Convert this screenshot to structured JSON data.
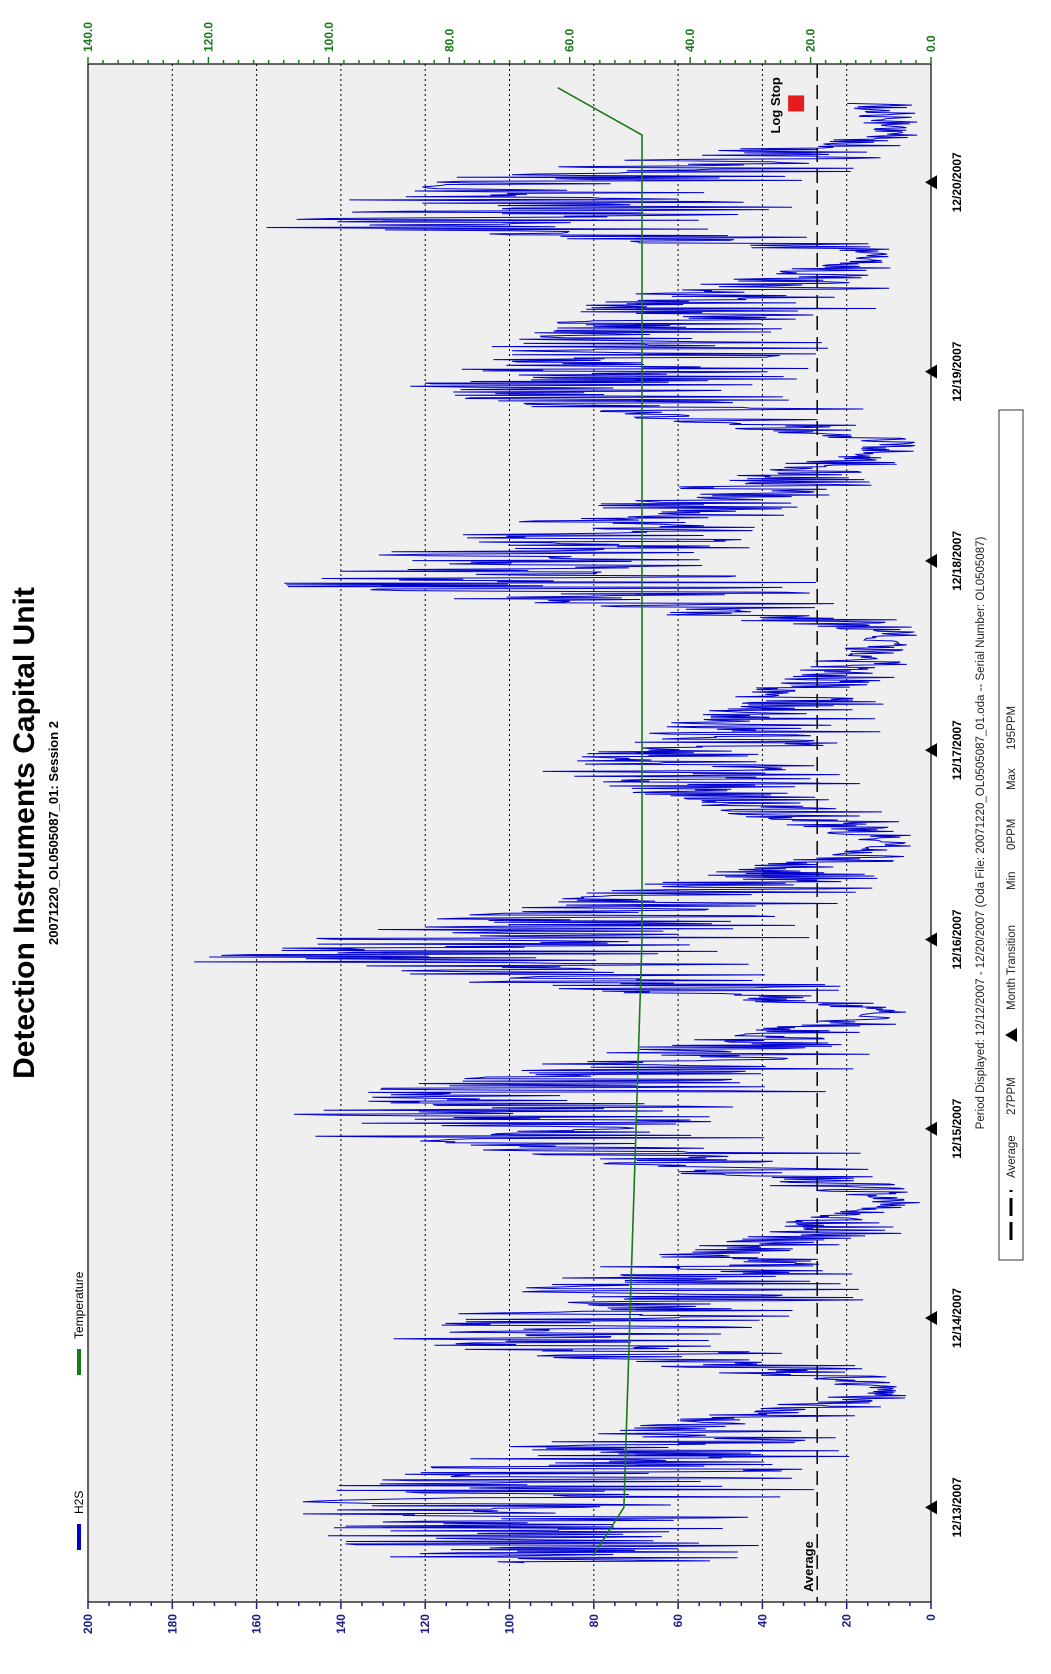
{
  "chart_data": {
    "type": "line",
    "title": "Detection Instruments Capital Unit",
    "subtitle": "20071220_OL0505087_01: Session 2",
    "orientation": "rotated-90-ccw",
    "x_ticks": [
      "12/13/2007",
      "12/14/2007",
      "12/15/2007",
      "12/16/2007",
      "12/17/2007",
      "12/18/2007",
      "12/19/2007",
      "12/20/2007"
    ],
    "y_left": {
      "ticks": [
        "0",
        "20",
        "40",
        "60",
        "80",
        "100",
        "120",
        "140",
        "160",
        "180",
        "200"
      ],
      "range": [
        0,
        200
      ]
    },
    "y_right": {
      "ticks": [
        "0.0",
        "20.0",
        "40.0",
        "60.0",
        "80.0",
        "100.0",
        "120.0",
        "140.0"
      ],
      "range": [
        0,
        140
      ]
    },
    "grid": true,
    "legend_position": "top-left",
    "average": {
      "label": "Average",
      "value": 27
    },
    "log_stop_label": "Log Stop",
    "series": [
      {
        "name": "H2S",
        "axis": "left",
        "color": "#0000cc",
        "approx_envelope_peaks": [
          {
            "date": "12/12/2007 18:00",
            "value": 137
          },
          {
            "date": "12/13/2007 00:00",
            "value": 155
          },
          {
            "date": "12/13/2007 06:00",
            "value": 125
          },
          {
            "date": "12/13/2007 21:00",
            "value": 132
          },
          {
            "date": "12/14/2007 06:00",
            "value": 85
          },
          {
            "date": "12/14/2007 21:00",
            "value": 100
          },
          {
            "date": "12/15/2007 00:00",
            "value": 168
          },
          {
            "date": "12/15/2007 06:00",
            "value": 125
          },
          {
            "date": "12/15/2007 21:00",
            "value": 180
          },
          {
            "date": "12/16/2007 00:00",
            "value": 150
          },
          {
            "date": "12/16/2007 21:00",
            "value": 95
          },
          {
            "date": "12/17/2007 06:00",
            "value": 50
          },
          {
            "date": "12/17/2007 21:00",
            "value": 160
          },
          {
            "date": "12/18/2007 03:00",
            "value": 115
          },
          {
            "date": "12/18/2007 21:00",
            "value": 130
          },
          {
            "date": "12/19/2007 09:00",
            "value": 80
          },
          {
            "date": "12/19/2007 18:00",
            "value": 160
          },
          {
            "date": "12/20/2007 00:00",
            "value": 130
          },
          {
            "date": "12/20/2007 09:00",
            "value": 20
          }
        ]
      },
      {
        "name": "Temperature",
        "axis": "right",
        "color": "#1a7a1a",
        "approx_values": [
          {
            "date": "12/12/2007 18:00",
            "value": 56
          },
          {
            "date": "12/13/2007 00:00",
            "value": 51
          },
          {
            "date": "12/14/2007 00:00",
            "value": 50
          },
          {
            "date": "12/15/2007 00:00",
            "value": 49
          },
          {
            "date": "12/16/2007 00:00",
            "value": 48
          },
          {
            "date": "12/17/2007 00:00",
            "value": 48
          },
          {
            "date": "12/18/2007 00:00",
            "value": 48
          },
          {
            "date": "12/19/2007 00:00",
            "value": 48
          },
          {
            "date": "12/20/2007 00:00",
            "value": 48
          },
          {
            "date": "12/20/2007 06:00",
            "value": 48
          },
          {
            "date": "12/20/2007 12:00",
            "value": 62
          }
        ]
      }
    ]
  },
  "footer": {
    "period_line": "Period Displayed: 12/12/2007 - 12/20/2007  (Oda File: 20071220_OL0505087_01.oda  --  Serial Number: OL0505087)",
    "legend": {
      "average_label": "Average",
      "average_value": "27PPM",
      "transition_label": "Month Transition",
      "min_label": "Min",
      "min_value": "0PPM",
      "max_label": "Max",
      "max_value": "195PPM"
    }
  }
}
